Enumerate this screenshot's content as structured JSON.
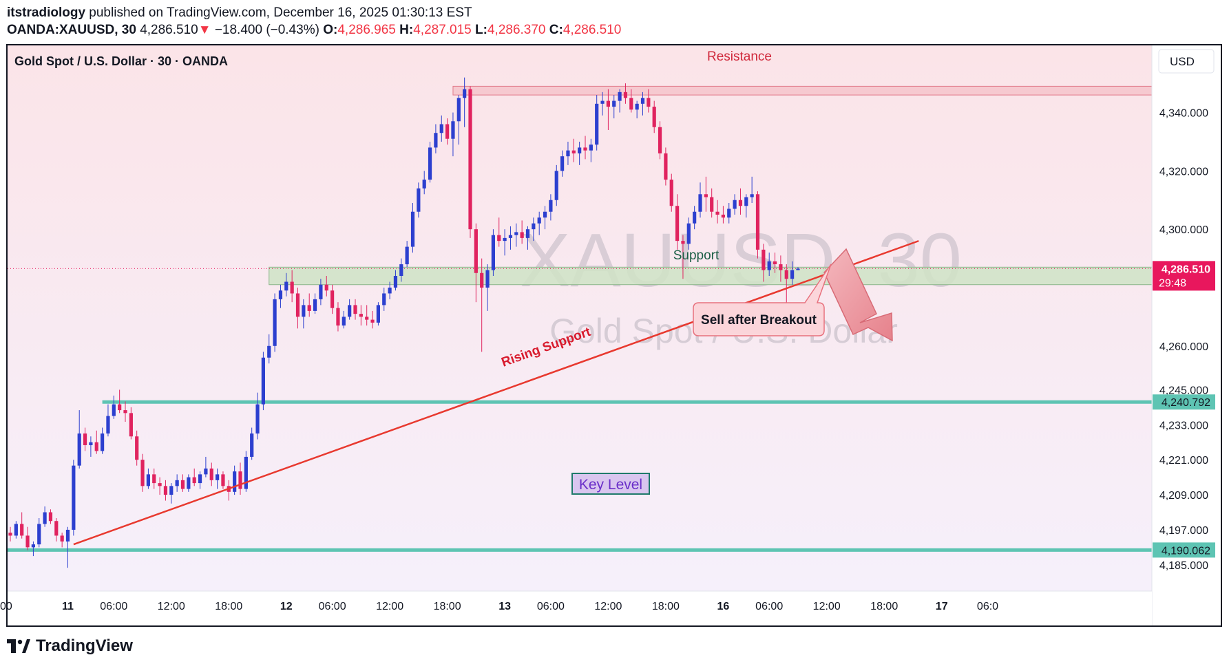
{
  "header": {
    "publisher": "itstradiology",
    "published_text": "published on TradingView.com, December 16, 2025 01:30:13 EST",
    "symbol_line": "OANDA:XAUUSD, 30",
    "last": "4,286.510",
    "change_arrow": "▼",
    "change": "−18.400 (−0.43%)",
    "o_label": "O:",
    "o": "4,286.965",
    "h_label": "H:",
    "h": "4,287.015",
    "l_label": "L:",
    "l": "4,286.370",
    "c_label": "C:",
    "c": "4,286.510"
  },
  "chart_title": "Gold Spot / U.S. Dollar · 30 · OANDA",
  "watermark": {
    "symbol": "XAUUSD, 30",
    "name": "Gold Spot / U.S. Dollar"
  },
  "currency": "USD",
  "footer": {
    "brand": "TradingView",
    "logo": "tradingview-logo"
  },
  "colors": {
    "up": "#2c3fcf",
    "down": "#e0235f",
    "trendline": "#e8392f",
    "level": "#5ec4b3",
    "support_zone": "#cfe3c6",
    "resistance_zone": "#f6c9d0",
    "price_tag": "#e8175d"
  },
  "chart_data": {
    "type": "candlestick",
    "timeframe": "30",
    "ylim": [
      4176,
      4363
    ],
    "price_ticks": [
      {
        "value": 4340.0,
        "label": "4,340.000"
      },
      {
        "value": 4320.0,
        "label": "4,320.000"
      },
      {
        "value": 4300.0,
        "label": "4,300.000"
      },
      {
        "value": 4260.0,
        "label": "4,260.000"
      },
      {
        "value": 4245.0,
        "label": "4,245.000"
      },
      {
        "value": 4233.0,
        "label": "4,233.000"
      },
      {
        "value": 4221.0,
        "label": "4,221.000"
      },
      {
        "value": 4209.0,
        "label": "4,209.000"
      },
      {
        "value": 4197.0,
        "label": "4,197.000"
      },
      {
        "value": 4185.0,
        "label": "4,185.000"
      }
    ],
    "time_ticks": [
      {
        "bar": -1,
        "label": ":00",
        "bold": false
      },
      {
        "bar": 10,
        "label": "11",
        "bold": true
      },
      {
        "bar": 18,
        "label": "06:00",
        "bold": false
      },
      {
        "bar": 28,
        "label": "12:00",
        "bold": false
      },
      {
        "bar": 38,
        "label": "18:00",
        "bold": false
      },
      {
        "bar": 48,
        "label": "12",
        "bold": true
      },
      {
        "bar": 56,
        "label": "06:00",
        "bold": false
      },
      {
        "bar": 66,
        "label": "12:00",
        "bold": false
      },
      {
        "bar": 76,
        "label": "18:00",
        "bold": false
      },
      {
        "bar": 86,
        "label": "13",
        "bold": true
      },
      {
        "bar": 94,
        "label": "06:00",
        "bold": false
      },
      {
        "bar": 104,
        "label": "12:00",
        "bold": false
      },
      {
        "bar": 114,
        "label": "18:00",
        "bold": false
      },
      {
        "bar": 124,
        "label": "16",
        "bold": true
      },
      {
        "bar": 132,
        "label": "06:00",
        "bold": false
      },
      {
        "bar": 142,
        "label": "12:00",
        "bold": false
      },
      {
        "bar": 152,
        "label": "18:00",
        "bold": false
      },
      {
        "bar": 162,
        "label": "17",
        "bold": true
      },
      {
        "bar": 170,
        "label": "06:0",
        "bold": false
      }
    ],
    "price_tags": [
      {
        "value": 4286.51,
        "label": "4,286.510",
        "sublabel": "29:48",
        "kind": "last"
      },
      {
        "value": 4240.792,
        "label": "4,240.792",
        "kind": "level"
      },
      {
        "value": 4190.062,
        "label": "4,190.062",
        "kind": "level"
      }
    ],
    "horizontal_levels": [
      4240.792,
      4190.062
    ],
    "zones": [
      {
        "name": "Resistance",
        "from": 4346,
        "to": 4349,
        "start_bar": 77
      },
      {
        "name": "Support",
        "from": 4281,
        "to": 4287,
        "start_bar": 45
      }
    ],
    "trendline": {
      "name": "Rising Support",
      "from": {
        "bar": 11,
        "price": 4192
      },
      "to": {
        "bar": 158,
        "price": 4296
      }
    },
    "annotations": {
      "resistance": "Resistance",
      "support": "Support",
      "rising_support": "Rising Support",
      "callout": "Sell after Breakout",
      "key_level": "Key Level"
    },
    "ohlc": [
      [
        4196.0,
        4198.0,
        4193.0,
        4195.0
      ],
      [
        4195.0,
        4200.0,
        4194.0,
        4199.0
      ],
      [
        4199.0,
        4203.0,
        4194.0,
        4195.0
      ],
      [
        4195.0,
        4198.0,
        4190.0,
        4191.0
      ],
      [
        4191.0,
        4193.0,
        4188.0,
        4192.0
      ],
      [
        4192.0,
        4201.0,
        4191.0,
        4199.0
      ],
      [
        4199.0,
        4205.0,
        4198.0,
        4203.0
      ],
      [
        4203.0,
        4204.0,
        4199.0,
        4200.0
      ],
      [
        4200.0,
        4201.0,
        4193.0,
        4195.0
      ],
      [
        4195.0,
        4196.0,
        4191.0,
        4193.0
      ],
      [
        4193.0,
        4198.0,
        4184.0,
        4197.0
      ],
      [
        4197.0,
        4221.0,
        4195.0,
        4219.0
      ],
      [
        4219.0,
        4238.0,
        4218.0,
        4230.0
      ],
      [
        4230.0,
        4232.0,
        4224.0,
        4226.0
      ],
      [
        4226.0,
        4229.0,
        4222.0,
        4227.0
      ],
      [
        4227.0,
        4231.0,
        4223.0,
        4224.0
      ],
      [
        4224.0,
        4232.0,
        4223.0,
        4230.0
      ],
      [
        4230.0,
        4240.0,
        4229.0,
        4236.0
      ],
      [
        4236.0,
        4243.0,
        4235.0,
        4240.0
      ],
      [
        4240.0,
        4245.0,
        4237.0,
        4238.0
      ],
      [
        4238.0,
        4241.0,
        4234.0,
        4237.0
      ],
      [
        4237.0,
        4239.0,
        4228.0,
        4229.0
      ],
      [
        4229.0,
        4231.0,
        4219.0,
        4221.0
      ],
      [
        4221.0,
        4223.0,
        4210.0,
        4212.0
      ],
      [
        4212.0,
        4218.0,
        4211.0,
        4216.0
      ],
      [
        4216.0,
        4218.0,
        4211.0,
        4213.0
      ],
      [
        4213.0,
        4215.0,
        4209.0,
        4212.0
      ],
      [
        4212.0,
        4214.0,
        4207.0,
        4209.0
      ],
      [
        4209.0,
        4213.0,
        4206.0,
        4212.0
      ],
      [
        4212.0,
        4216.0,
        4210.0,
        4214.0
      ],
      [
        4214.0,
        4216.0,
        4210.0,
        4211.0
      ],
      [
        4211.0,
        4216.0,
        4210.0,
        4215.0
      ],
      [
        4215.0,
        4218.0,
        4212.0,
        4213.0
      ],
      [
        4213.0,
        4217.0,
        4211.0,
        4216.0
      ],
      [
        4216.0,
        4222.0,
        4215.0,
        4218.0
      ],
      [
        4218.0,
        4220.0,
        4212.0,
        4214.0
      ],
      [
        4214.0,
        4218.0,
        4211.0,
        4216.0
      ],
      [
        4216.0,
        4217.0,
        4211.0,
        4212.0
      ],
      [
        4212.0,
        4214.0,
        4207.0,
        4210.0
      ],
      [
        4210.0,
        4219.0,
        4209.0,
        4217.0
      ],
      [
        4217.0,
        4220.0,
        4209.0,
        4211.0
      ],
      [
        4211.0,
        4224.0,
        4210.0,
        4222.0
      ],
      [
        4222.0,
        4232.0,
        4221.0,
        4230.0
      ],
      [
        4230.0,
        4244.0,
        4228.0,
        4240.0
      ],
      [
        4240.0,
        4258.0,
        4238.0,
        4256.0
      ],
      [
        4256.0,
        4264.0,
        4254.0,
        4260.0
      ],
      [
        4260.0,
        4278.0,
        4258.0,
        4276.0
      ],
      [
        4276.0,
        4281.0,
        4273.0,
        4279.0
      ],
      [
        4279.0,
        4285.0,
        4277.0,
        4282.0
      ],
      [
        4282.0,
        4286.0,
        4275.0,
        4278.0
      ],
      [
        4278.0,
        4280.0,
        4266.0,
        4270.0
      ],
      [
        4270.0,
        4276.0,
        4266.0,
        4274.0
      ],
      [
        4274.0,
        4278.0,
        4270.0,
        4272.0
      ],
      [
        4272.0,
        4278.0,
        4271.0,
        4276.0
      ],
      [
        4276.0,
        4283.0,
        4274.0,
        4281.0
      ],
      [
        4281.0,
        4284.0,
        4277.0,
        4279.0
      ],
      [
        4279.0,
        4281.0,
        4271.0,
        4273.0
      ],
      [
        4273.0,
        4275.0,
        4265.0,
        4267.0
      ],
      [
        4267.0,
        4272.0,
        4266.0,
        4270.0
      ],
      [
        4270.0,
        4276.0,
        4269.0,
        4274.0
      ],
      [
        4274.0,
        4276.0,
        4269.0,
        4271.0
      ],
      [
        4271.0,
        4274.0,
        4267.0,
        4270.0
      ],
      [
        4270.0,
        4274.0,
        4267.0,
        4269.0
      ],
      [
        4269.0,
        4272.0,
        4266.0,
        4268.0
      ],
      [
        4268.0,
        4275.0,
        4267.0,
        4274.0
      ],
      [
        4274.0,
        4280.0,
        4272.0,
        4278.0
      ],
      [
        4278.0,
        4282.0,
        4276.0,
        4280.0
      ],
      [
        4280.0,
        4286.0,
        4279.0,
        4284.0
      ],
      [
        4284.0,
        4290.0,
        4282.0,
        4288.0
      ],
      [
        4288.0,
        4296.0,
        4287.0,
        4294.0
      ],
      [
        4294.0,
        4309.0,
        4292.0,
        4306.0
      ],
      [
        4306.0,
        4316.0,
        4304.0,
        4314.0
      ],
      [
        4314.0,
        4320.0,
        4312.0,
        4317.0
      ],
      [
        4317.0,
        4330.0,
        4316.0,
        4328.0
      ],
      [
        4328.0,
        4336.0,
        4326.0,
        4333.0
      ],
      [
        4333.0,
        4339.0,
        4330.0,
        4336.0
      ],
      [
        4336.0,
        4338.0,
        4329.0,
        4331.0
      ],
      [
        4331.0,
        4340.0,
        4325.0,
        4337.0
      ],
      [
        4337.0,
        4346.0,
        4329.0,
        4345.0
      ],
      [
        4345.0,
        4352.0,
        4335.0,
        4348.0
      ],
      [
        4348.0,
        4349.0,
        4297.0,
        4300.0
      ],
      [
        4300.0,
        4302.0,
        4275.0,
        4285.0
      ],
      [
        4285.0,
        4290.0,
        4258.0,
        4280.0
      ],
      [
        4280.0,
        4288.0,
        4272.0,
        4286.0
      ],
      [
        4286.0,
        4300.0,
        4284.0,
        4298.0
      ],
      [
        4298.0,
        4304.0,
        4294.0,
        4296.0
      ],
      [
        4296.0,
        4300.0,
        4291.0,
        4297.0
      ],
      [
        4297.0,
        4301.0,
        4293.0,
        4298.0
      ],
      [
        4298.0,
        4302.0,
        4294.0,
        4299.0
      ],
      [
        4299.0,
        4303.0,
        4295.0,
        4297.0
      ],
      [
        4297.0,
        4301.0,
        4293.0,
        4300.0
      ],
      [
        4300.0,
        4304.0,
        4296.0,
        4302.0
      ],
      [
        4302.0,
        4306.0,
        4298.0,
        4304.0
      ],
      [
        4304.0,
        4308.0,
        4300.0,
        4306.0
      ],
      [
        4306.0,
        4312.0,
        4303.0,
        4310.0
      ],
      [
        4310.0,
        4322.0,
        4308.0,
        4320.0
      ],
      [
        4320.0,
        4327.0,
        4318.0,
        4325.0
      ],
      [
        4325.0,
        4330.0,
        4322.0,
        4327.0
      ],
      [
        4327.0,
        4331.0,
        4323.0,
        4326.0
      ],
      [
        4326.0,
        4330.0,
        4322.0,
        4328.0
      ],
      [
        4328.0,
        4332.0,
        4324.0,
        4327.0
      ],
      [
        4327.0,
        4331.0,
        4323.0,
        4329.0
      ],
      [
        4329.0,
        4346.0,
        4327.0,
        4343.0
      ],
      [
        4343.0,
        4347.0,
        4339.0,
        4344.0
      ],
      [
        4344.0,
        4348.0,
        4334.0,
        4342.0
      ],
      [
        4342.0,
        4346.0,
        4338.0,
        4344.0
      ],
      [
        4344.0,
        4348.0,
        4340.0,
        4347.0
      ],
      [
        4347.0,
        4350.0,
        4343.0,
        4345.0
      ],
      [
        4345.0,
        4348.0,
        4340.0,
        4341.0
      ],
      [
        4341.0,
        4344.0,
        4338.0,
        4343.0
      ],
      [
        4343.0,
        4347.0,
        4339.0,
        4345.0
      ],
      [
        4345.0,
        4348.0,
        4340.0,
        4342.0
      ],
      [
        4342.0,
        4344.0,
        4333.0,
        4335.0
      ],
      [
        4335.0,
        4337.0,
        4324.0,
        4326.0
      ],
      [
        4326.0,
        4328.0,
        4315.0,
        4317.0
      ],
      [
        4317.0,
        4319.0,
        4306.0,
        4308.0
      ],
      [
        4308.0,
        4312.0,
        4293.0,
        4296.0
      ],
      [
        4296.0,
        4298.0,
        4283.0,
        4295.0
      ],
      [
        4295.0,
        4304.0,
        4293.0,
        4302.0
      ],
      [
        4302.0,
        4308.0,
        4300.0,
        4306.0
      ],
      [
        4306.0,
        4316.0,
        4304.0,
        4312.0
      ],
      [
        4312.0,
        4318.0,
        4306.0,
        4311.0
      ],
      [
        4311.0,
        4314.0,
        4304.0,
        4306.0
      ],
      [
        4306.0,
        4310.0,
        4302.0,
        4305.0
      ],
      [
        4305.0,
        4308.0,
        4302.0,
        4304.0
      ],
      [
        4304.0,
        4309.0,
        4302.0,
        4307.0
      ],
      [
        4307.0,
        4312.0,
        4305.0,
        4310.0
      ],
      [
        4310.0,
        4314.0,
        4305.0,
        4308.0
      ],
      [
        4308.0,
        4312.0,
        4304.0,
        4311.0
      ],
      [
        4311.0,
        4318.0,
        4309.0,
        4312.0
      ],
      [
        4312.0,
        4313.0,
        4290.0,
        4293.0
      ],
      [
        4293.0,
        4295.0,
        4282.0,
        4286.0
      ],
      [
        4286.0,
        4292.0,
        4284.0,
        4289.0
      ],
      [
        4289.0,
        4292.0,
        4285.0,
        4288.0
      ],
      [
        4288.0,
        4291.0,
        4282.0,
        4286.0
      ],
      [
        4286.0,
        4288.0,
        4273.0,
        4283.0
      ],
      [
        4283.0,
        4289.0,
        4281.0,
        4286.0
      ],
      [
        4286.0,
        4287.0,
        4286.0,
        4286.5
      ]
    ]
  }
}
